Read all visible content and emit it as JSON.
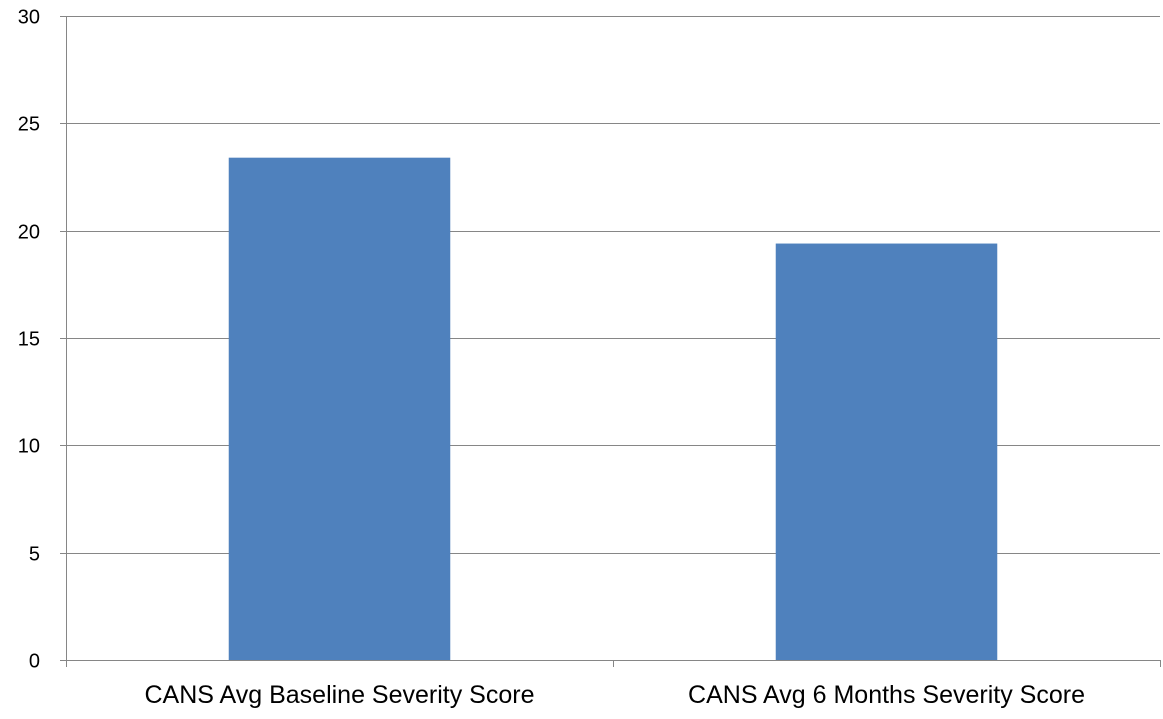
{
  "chart_data": {
    "type": "bar",
    "title": "",
    "xlabel": "",
    "ylabel": "",
    "categories": [
      "CANS Avg Baseline Severity Score",
      "CANS Avg 6 Months Severity Score"
    ],
    "values": [
      23.4,
      19.4
    ],
    "ylim": [
      0,
      30
    ],
    "yticks": [
      0,
      5,
      10,
      15,
      20,
      25,
      30
    ],
    "grid": true,
    "legend": "none",
    "colors": {
      "bar": "#4F81BD",
      "grid": "#868686",
      "axis": "#868686"
    }
  }
}
